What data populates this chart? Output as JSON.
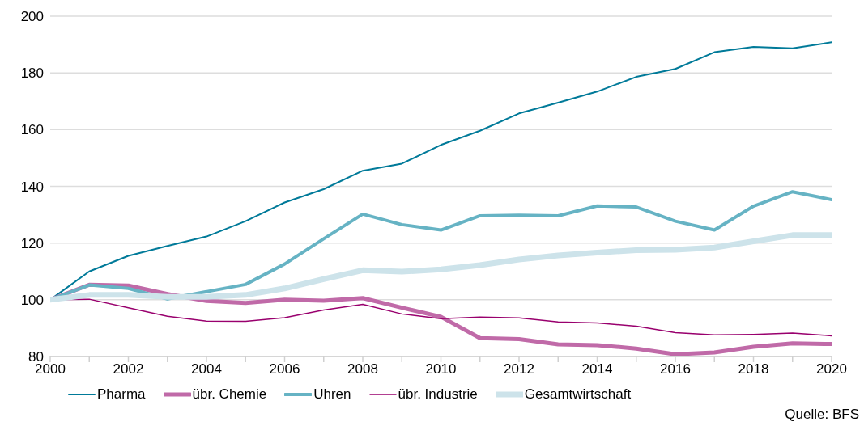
{
  "chart_data": {
    "type": "line",
    "x": [
      2000,
      2001,
      2002,
      2003,
      2004,
      2005,
      2006,
      2007,
      2008,
      2009,
      2010,
      2011,
      2012,
      2013,
      2014,
      2015,
      2016,
      2017,
      2018,
      2019,
      2020
    ],
    "series": [
      {
        "name": "Pharma",
        "color": "#007a99",
        "values": [
          100,
          110,
          115.5,
          119,
          122.3,
          127.7,
          134.3,
          139,
          145.5,
          148,
          154.6,
          159.6,
          165.7,
          169.5,
          173.4,
          178.6,
          181.4,
          187.3,
          189.2,
          188.7,
          190.8
        ]
      },
      {
        "name": "übr. Chemie",
        "color": "#c06aa8",
        "values": [
          100,
          105.3,
          105,
          102,
          99.6,
          98.9,
          100,
          99.7,
          100.6,
          97.2,
          94,
          86.5,
          86.1,
          84.3,
          84,
          82.8,
          80.8,
          81.4,
          83.4,
          84.6,
          84.4
        ]
      },
      {
        "name": "Uhren",
        "color": "#66b3c4",
        "values": [
          100,
          105.2,
          104,
          100.3,
          null,
          105.4,
          112.6,
          121.5,
          130.2,
          126.5,
          124.6,
          129.6,
          129.8,
          129.6,
          133.1,
          132.7,
          127.7,
          124.6,
          133,
          138.1,
          135.3
        ]
      },
      {
        "name": "übr. Industrie",
        "color": "#99006e",
        "values": [
          100,
          100.2,
          97.2,
          94.2,
          92.5,
          92.4,
          93.7,
          96.4,
          98.4,
          95,
          93.3,
          93.9,
          93.6,
          92.2,
          91.8,
          90.7,
          88.4,
          87.6,
          87.8,
          88.3,
          87.3
        ]
      },
      {
        "name": "Gesamtwirtschaft",
        "color": "#cde3ea",
        "values": [
          100,
          101.7,
          101.7,
          101,
          101,
          101.7,
          104,
          107.3,
          110.4,
          109.9,
          110.7,
          112.2,
          114.2,
          115.6,
          116.6,
          117.5,
          117.6,
          118.4,
          120.6,
          122.8,
          122.8
        ]
      }
    ],
    "xlim": [
      2000,
      2020
    ],
    "xticks": [
      2000,
      {
        "value": 2001,
        "label": null
      },
      2002,
      {
        "value": 2003,
        "label": null
      },
      2004,
      {
        "value": 2005,
        "label": null
      },
      2006,
      {
        "value": 2007,
        "label": null
      },
      2008,
      {
        "value": 2009,
        "label": null
      },
      2010,
      {
        "value": 2011,
        "label": null
      },
      2012,
      {
        "value": 2013,
        "label": null
      },
      2014,
      {
        "value": 2015,
        "label": null
      },
      2016,
      {
        "value": 2017,
        "label": null
      },
      2018,
      {
        "value": 2019,
        "label": null
      },
      2020
    ],
    "ylim": [
      80,
      200
    ],
    "yticks": [
      80,
      100,
      120,
      140,
      160,
      180,
      200
    ],
    "grid": "y",
    "legend": "bottom",
    "marker": "none",
    "line_style": "solid",
    "annotations": [
      "Quelle: BFS"
    ]
  }
}
